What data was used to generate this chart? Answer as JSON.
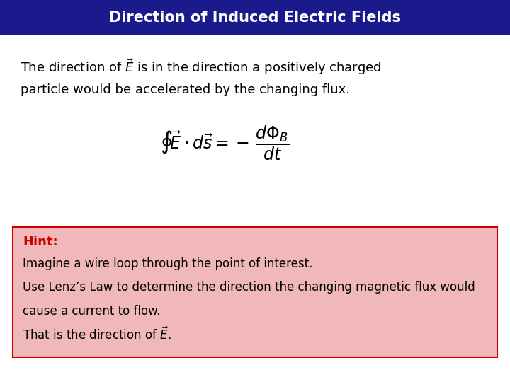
{
  "title": "Direction of Induced Electric Fields",
  "title_bg_color": "#1a1a8c",
  "title_text_color": "#ffffff",
  "body_bg_color": "#ffffff",
  "hint_bg_color": "#f0b8b8",
  "hint_border_color": "#cc0000",
  "hint_label": "Hint:",
  "hint_label_color": "#cc0000",
  "main_text_line1": "The direction of $\\vec{E}$ is in the direction a positively charged",
  "main_text_line2": "particle would be accelerated by the changing flux.",
  "equation": "$\\oint\\!\\vec{E}\\cdot d\\vec{s} = -\\,\\dfrac{d\\Phi_B}{dt}$",
  "hint_line1": "Imagine a wire loop through the point of interest.",
  "hint_line2": "Use Lenz’s Law to determine the direction the changing magnetic flux would",
  "hint_line3": "cause a current to flow.",
  "hint_line4": "That is the direction of $\\vec{E}$.",
  "font_size_title": 15,
  "font_size_body": 13,
  "font_size_eq": 17,
  "font_size_hint_label": 13,
  "font_size_hint_body": 12
}
